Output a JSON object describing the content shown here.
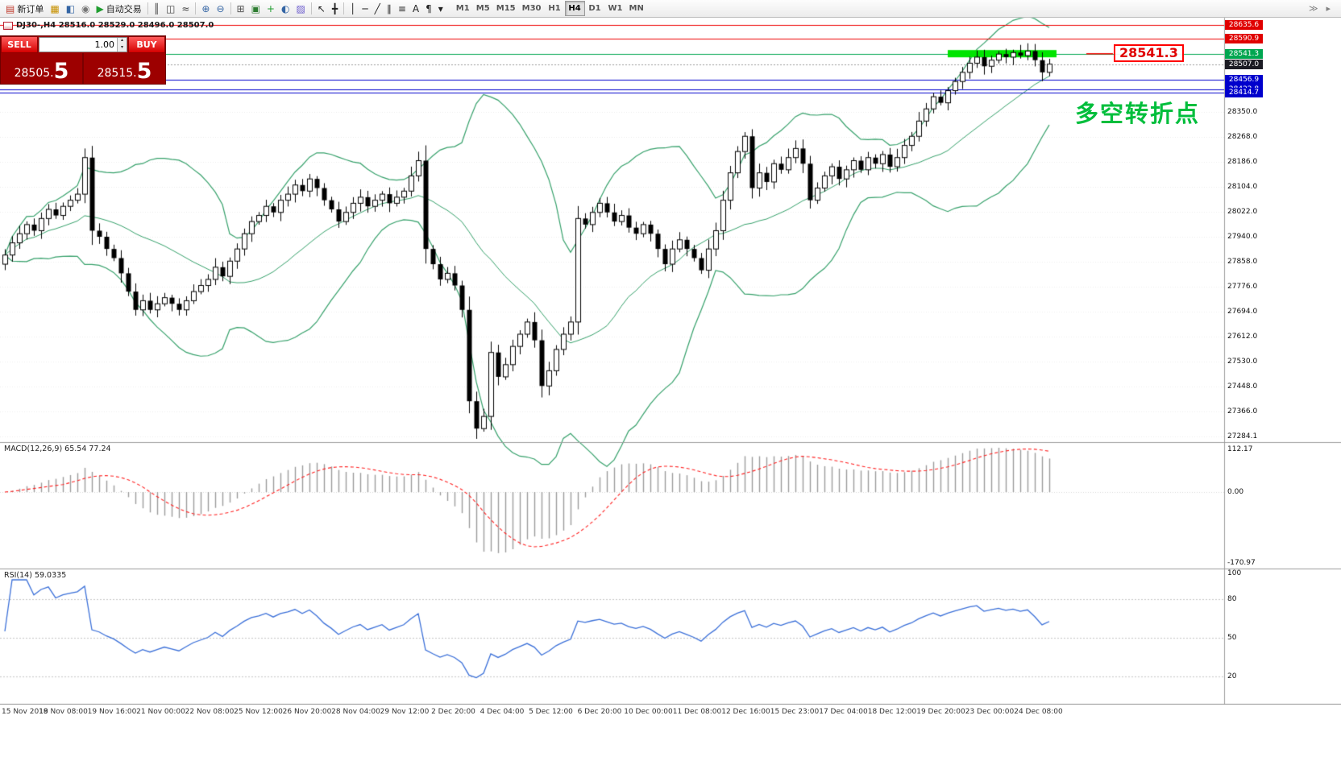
{
  "toolbar": {
    "buttons": [
      {
        "name": "new-order",
        "glyph": "▤",
        "color": "#c0392b",
        "label": "新订单"
      },
      {
        "name": "market-watch",
        "glyph": "▦",
        "color": "#c79100"
      },
      {
        "name": "data-window",
        "glyph": "◧",
        "color": "#3465a4"
      },
      {
        "name": "navigator",
        "glyph": "◉",
        "color": "#777777"
      },
      {
        "name": "auto-trading",
        "glyph": "▶",
        "color": "#1f9d2f",
        "label": "自动交易"
      },
      {
        "sep": true
      },
      {
        "name": "bar-chart",
        "glyph": "║",
        "color": "#444444"
      },
      {
        "name": "candlestick-chart",
        "glyph": "◫",
        "color": "#444444"
      },
      {
        "name": "line-chart",
        "glyph": "≈",
        "color": "#444444"
      },
      {
        "sep": true
      },
      {
        "name": "zoom-in",
        "glyph": "⊕",
        "color": "#3465a4"
      },
      {
        "name": "zoom-out",
        "glyph": "⊖",
        "color": "#3465a4"
      },
      {
        "sep": true
      },
      {
        "name": "tile-windows",
        "glyph": "⊞",
        "color": "#555555"
      },
      {
        "name": "new-chart",
        "glyph": "▣",
        "color": "#2e7d32"
      },
      {
        "name": "indicators",
        "glyph": "+",
        "color": "#1f9d2f"
      },
      {
        "name": "periods",
        "glyph": "◐",
        "color": "#3465a4"
      },
      {
        "name": "templates",
        "glyph": "▨",
        "color": "#6a5acd"
      },
      {
        "sep": true
      },
      {
        "name": "cursor",
        "glyph": "↖",
        "color": "#222222"
      },
      {
        "name": "crosshair",
        "glyph": "╋",
        "color": "#222222"
      },
      {
        "sep": true
      },
      {
        "name": "vertical-line",
        "glyph": "│",
        "color": "#222222"
      },
      {
        "name": "horizontal-line",
        "glyph": "─",
        "color": "#222222"
      },
      {
        "name": "trendline",
        "glyph": "╱",
        "color": "#222222"
      },
      {
        "name": "channel",
        "glyph": "∥",
        "color": "#222222"
      },
      {
        "name": "fibonacci",
        "glyph": "≡",
        "color": "#222222"
      },
      {
        "name": "text",
        "glyph": "A",
        "color": "#222222"
      },
      {
        "name": "label",
        "glyph": "¶",
        "color": "#222222"
      },
      {
        "name": "arrows",
        "glyph": "▾",
        "color": "#222222"
      }
    ],
    "timeframes": [
      "M1",
      "M5",
      "M15",
      "M30",
      "H1",
      "H4",
      "D1",
      "W1",
      "MN"
    ],
    "active_timeframe": "H4",
    "right_icons": [
      {
        "name": "chart-shift",
        "glyph": "≫"
      },
      {
        "name": "auto-scroll",
        "glyph": "▸"
      }
    ]
  },
  "symbol_info": "DJ30-,H4 28516.0 28529.0 28496.0 28507.0",
  "trade_panel": {
    "sell_label": "SELL",
    "buy_label": "BUY",
    "volume": "1.00",
    "sell_price": "28505.",
    "sell_price_big": "5",
    "buy_price": "28515.",
    "buy_price_big": "5"
  },
  "annotations": {
    "callout_price": "28541.3",
    "note_text": "多空转折点"
  },
  "price_scale": {
    "tags": [
      {
        "text": "28635.6",
        "price": 28635.6,
        "bg": "#e00000"
      },
      {
        "text": "28590.9",
        "price": 28590.9,
        "bg": "#e00000"
      },
      {
        "text": "28541.3",
        "price": 28541.3,
        "bg": "#00a651"
      },
      {
        "text": "28507.0",
        "price": 28507.0,
        "bg": "#1c1c24"
      },
      {
        "text": "28456.9",
        "price": 28456.9,
        "bg": "#0000cc"
      },
      {
        "text": "28422.8",
        "price": 28422.8,
        "bg": "#0000cc"
      },
      {
        "text": "28414.7",
        "price": 28414.7,
        "bg": "#0000cc"
      }
    ],
    "ticks": [
      {
        "text": "28350.0",
        "price": 28350.0
      },
      {
        "text": "28268.0",
        "price": 28268.0
      },
      {
        "text": "28186.0",
        "price": 28186.0
      },
      {
        "text": "28104.0",
        "price": 28104.0
      },
      {
        "text": "28022.0",
        "price": 28022.0
      },
      {
        "text": "27940.0",
        "price": 27940.0
      },
      {
        "text": "27858.0",
        "price": 27858.0
      },
      {
        "text": "27776.0",
        "price": 27776.0
      },
      {
        "text": "27694.0",
        "price": 27694.0
      },
      {
        "text": "27612.0",
        "price": 27612.0
      },
      {
        "text": "27530.0",
        "price": 27530.0
      },
      {
        "text": "27448.0",
        "price": 27448.0
      },
      {
        "text": "27366.0",
        "price": 27366.0
      },
      {
        "text": "27284.1",
        "price": 27284.1
      }
    ]
  },
  "macd": {
    "label": "MACD(12,26,9) 65.54 77.24",
    "axis": [
      "112.17",
      "0.00",
      "-170.97"
    ]
  },
  "rsi": {
    "label": "RSI(14) 59.0335",
    "axis": [
      "100",
      "80",
      "50",
      "20"
    ]
  },
  "chart_data": {
    "type": "candlestick",
    "symbol": "DJ30-",
    "timeframe": "H4",
    "last_ohlc": {
      "open": 28516.0,
      "high": 28529.0,
      "low": 28496.0,
      "close": 28507.0
    },
    "closes": [
      27880,
      27920,
      27950,
      27980,
      27960,
      28000,
      28030,
      28010,
      28040,
      28060,
      28080,
      28200,
      27960,
      27940,
      27900,
      27870,
      27820,
      27760,
      27700,
      27730,
      27700,
      27720,
      27740,
      27720,
      27700,
      27730,
      27760,
      27780,
      27800,
      27840,
      27810,
      27860,
      27900,
      27950,
      27990,
      28010,
      28040,
      28020,
      28060,
      28080,
      28110,
      28090,
      28130,
      28100,
      28060,
      28030,
      27990,
      28020,
      28050,
      28070,
      28040,
      28060,
      28080,
      28050,
      28070,
      28090,
      28140,
      28190,
      27900,
      27850,
      27800,
      27820,
      27780,
      27700,
      27400,
      27310,
      27350,
      27560,
      27480,
      27520,
      27580,
      27620,
      27660,
      27600,
      27450,
      27500,
      27570,
      27620,
      27660,
      28000,
      27980,
      28020,
      28050,
      28020,
      27990,
      28010,
      27970,
      27950,
      27980,
      27950,
      27900,
      27850,
      27900,
      27930,
      27900,
      27870,
      27830,
      27900,
      27960,
      28060,
      28150,
      28220,
      28270,
      28100,
      28150,
      28120,
      28180,
      28160,
      28200,
      28230,
      28180,
      28060,
      28100,
      28140,
      28170,
      28130,
      28160,
      28190,
      28160,
      28200,
      28180,
      28210,
      28170,
      28200,
      28240,
      28270,
      28320,
      28360,
      28400,
      28380,
      28420,
      28450,
      28480,
      28510,
      28530,
      28500,
      28520,
      28540,
      28530,
      28545,
      28535,
      28550,
      28520,
      28480,
      28507
    ],
    "bollinger": {
      "period": 20,
      "deviation": 2
    },
    "hlines": [
      {
        "price": 28635.6,
        "color": "#ee0000"
      },
      {
        "price": 28590.9,
        "color": "#ee0000"
      },
      {
        "price": 28541.3,
        "color": "#00a651"
      },
      {
        "price": 28456.9,
        "color": "#0000cc"
      },
      {
        "price": 28422.8,
        "color": "#0000cc"
      },
      {
        "price": 28414.7,
        "color": "#0000cc"
      }
    ],
    "current_price": 28507.0,
    "zone": {
      "price": 28541.3,
      "from_index": 130,
      "to_index": 145,
      "color": "#00e400"
    },
    "macd_params": [
      12,
      26,
      9
    ],
    "rsi_period": 14,
    "rsi_levels": [
      80,
      50,
      20
    ],
    "colors": {
      "bollinger": "#35a06a",
      "rsi": "#3a6fd8",
      "histogram": "#9b9b9b",
      "signal": "#ff2020",
      "candle": "#000000"
    },
    "time_labels": [
      "15 Nov 2019",
      "18 Nov 08:00",
      "19 Nov 16:00",
      "21 Nov 00:00",
      "22 Nov 08:00",
      "25 Nov 12:00",
      "26 Nov 20:00",
      "28 Nov 04:00",
      "29 Nov 12:00",
      "2 Dec 20:00",
      "4 Dec 04:00",
      "5 Dec 12:00",
      "6 Dec 20:00",
      "10 Dec 00:00",
      "11 Dec 08:00",
      "12 Dec 16:00",
      "15 Dec 23:00",
      "17 Dec 04:00",
      "18 Dec 12:00",
      "19 Dec 20:00",
      "23 Dec 00:00",
      "24 Dec 08:00"
    ]
  }
}
